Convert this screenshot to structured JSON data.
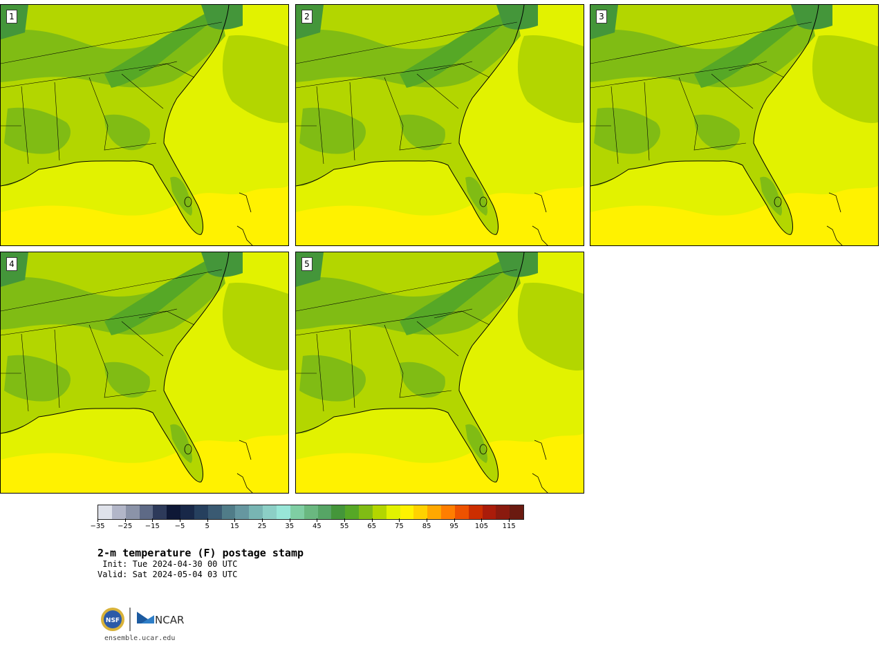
{
  "panels": [
    {
      "label": "1"
    },
    {
      "label": "2"
    },
    {
      "label": "3"
    },
    {
      "label": "4"
    },
    {
      "label": "5"
    }
  ],
  "colorbar": {
    "colors": [
      "#dfe2ea",
      "#b2b6c8",
      "#8b93a8",
      "#5e6a86",
      "#2d3a5a",
      "#0e1836",
      "#182848",
      "#26405e",
      "#3a5a72",
      "#507c88",
      "#6697a0",
      "#78b5b3",
      "#8ccfc6",
      "#98e6d8",
      "#7fcea3",
      "#6ab880",
      "#56a565",
      "#44963a",
      "#56a826",
      "#80bc14",
      "#b3d600",
      "#e2f200",
      "#fff200",
      "#ffd200",
      "#ffa800",
      "#ff7e00",
      "#ee5200",
      "#cc2e00",
      "#aa1c0a",
      "#8a1a0e",
      "#6a1a10"
    ],
    "tick_labels": [
      "−35",
      "−25",
      "−15",
      "−5",
      "5",
      "15",
      "25",
      "35",
      "45",
      "55",
      "65",
      "75",
      "85",
      "95",
      "105",
      "115"
    ]
  },
  "text": {
    "title": "2-m temperature (F) postage stamp",
    "init": " Init: Tue 2024-04-30 00 UTC",
    "valid": "Valid: Sat 2024-05-04 03 UTC",
    "site": "ensemble.ucar.edu",
    "nsf_logo": "NSF",
    "ncar_logo": "NCAR"
  },
  "colors": {
    "t75": "#e2f200",
    "t80": "#fff200",
    "t70": "#b3d600",
    "t65": "#80bc14",
    "t60": "#56a826",
    "t55": "#44963a"
  }
}
